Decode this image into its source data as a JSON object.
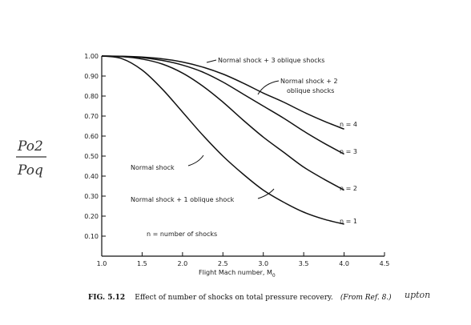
{
  "chart_data": {
    "type": "line",
    "xlabel": "Flight Mach number, M",
    "xlabel_sub": "0",
    "ylabel_handwritten": {
      "num": "Po2",
      "den": "Poq"
    },
    "xlim": [
      1.0,
      4.5
    ],
    "ylim": [
      0,
      1.0
    ],
    "x_ticks": [
      1.0,
      1.5,
      2.0,
      2.5,
      3.0,
      3.5,
      4.0,
      4.5
    ],
    "x_tick_labels": [
      "1.0",
      "1.5",
      "2.0",
      "2.5",
      "3.0",
      "3.5",
      "4.0",
      "4.5"
    ],
    "y_ticks": [
      0.1,
      0.2,
      0.3,
      0.4,
      0.5,
      0.6,
      0.7,
      0.8,
      0.9,
      1.0
    ],
    "y_tick_labels": [
      "0.10",
      "0.20",
      "0.30",
      "0.40",
      "0.50",
      "0.60",
      "0.70",
      "0.80",
      "0.90",
      "1.00"
    ],
    "grid": false,
    "series": [
      {
        "name": "n = 1",
        "x": [
          1.0,
          1.25,
          1.5,
          1.75,
          2.0,
          2.25,
          2.5,
          2.75,
          3.0,
          3.25,
          3.5,
          3.75,
          4.0
        ],
        "y": [
          1.0,
          0.987,
          0.93,
          0.835,
          0.72,
          0.605,
          0.5,
          0.41,
          0.33,
          0.27,
          0.22,
          0.185,
          0.16
        ]
      },
      {
        "name": "n = 2",
        "x": [
          1.0,
          1.25,
          1.5,
          1.75,
          2.0,
          2.25,
          2.5,
          2.75,
          3.0,
          3.25,
          3.5,
          3.75,
          4.0
        ],
        "y": [
          1.0,
          0.997,
          0.985,
          0.96,
          0.915,
          0.85,
          0.77,
          0.68,
          0.595,
          0.52,
          0.445,
          0.385,
          0.33
        ]
      },
      {
        "name": "n = 3",
        "x": [
          1.0,
          1.25,
          1.5,
          1.75,
          2.0,
          2.25,
          2.5,
          2.75,
          3.0,
          3.25,
          3.5,
          3.75,
          4.0
        ],
        "y": [
          1.0,
          0.998,
          0.992,
          0.978,
          0.955,
          0.92,
          0.87,
          0.81,
          0.75,
          0.69,
          0.625,
          0.565,
          0.51
        ]
      },
      {
        "name": "n = 4",
        "x": [
          1.0,
          1.25,
          1.5,
          1.75,
          2.0,
          2.25,
          2.5,
          2.75,
          3.0,
          3.25,
          3.5,
          3.75,
          4.0
        ],
        "y": [
          1.0,
          0.999,
          0.995,
          0.986,
          0.97,
          0.945,
          0.91,
          0.865,
          0.815,
          0.77,
          0.72,
          0.675,
          0.635
        ]
      }
    ],
    "curve_labels": [
      "n = 1",
      "n = 2",
      "n = 3",
      "n = 4"
    ],
    "annotations": {
      "normal_shock": "Normal shock",
      "normal_1_oblique": "Normal shock + 1 oblique shock",
      "normal_2_oblique_line1": "Normal shock + 2",
      "normal_2_oblique_line2": "oblique shocks",
      "normal_3_oblique": "Normal shock + 3 oblique shocks",
      "n_definition": "n = number of shocks"
    }
  },
  "caption": {
    "fig_label": "FIG. 5.12",
    "text": "Effect of number of shocks on total pressure recovery.",
    "ref": "(From Ref. 8.)",
    "handwriting": "upton"
  }
}
